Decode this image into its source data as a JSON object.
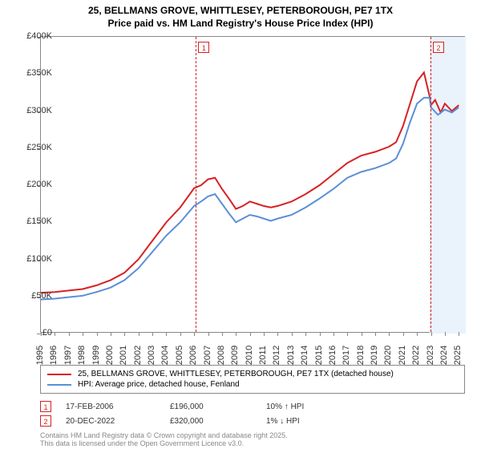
{
  "title_line1": "25, BELLMANS GROVE, WHITTLESEY, PETERBOROUGH, PE7 1TX",
  "title_line2": "Price paid vs. HM Land Registry's House Price Index (HPI)",
  "chart": {
    "type": "line",
    "background_color": "#ffffff",
    "border_color": "#888888",
    "xlim": [
      1995,
      2025.5
    ],
    "ylim": [
      0,
      400
    ],
    "y_ticks": [
      0,
      50,
      100,
      150,
      200,
      250,
      300,
      350,
      400
    ],
    "y_tick_labels": [
      "£0",
      "£50K",
      "£100K",
      "£150K",
      "£200K",
      "£250K",
      "£300K",
      "£350K",
      "£400K"
    ],
    "x_ticks": [
      1995,
      1996,
      1997,
      1998,
      1999,
      2000,
      2001,
      2002,
      2003,
      2004,
      2005,
      2006,
      2007,
      2008,
      2009,
      2010,
      2011,
      2012,
      2013,
      2014,
      2015,
      2016,
      2017,
      2018,
      2019,
      2020,
      2021,
      2022,
      2023,
      2024,
      2025
    ],
    "x_tick_labels": [
      "1995",
      "1996",
      "1997",
      "1998",
      "1999",
      "2000",
      "2001",
      "2002",
      "2003",
      "2004",
      "2005",
      "2006",
      "2007",
      "2008",
      "2009",
      "2010",
      "2011",
      "2012",
      "2013",
      "2014",
      "2015",
      "2016",
      "2017",
      "2018",
      "2019",
      "2020",
      "2021",
      "2022",
      "2023",
      "2024",
      "2025"
    ],
    "shaded_region": {
      "x_start": 2022.9,
      "x_end": 2025.5,
      "fill": "#eaf2fb"
    },
    "series": [
      {
        "name": "price_paid",
        "color": "#d62224",
        "width": 2,
        "points": [
          [
            1995,
            55
          ],
          [
            1996,
            56
          ],
          [
            1997,
            58
          ],
          [
            1998,
            60
          ],
          [
            1999,
            65
          ],
          [
            2000,
            72
          ],
          [
            2001,
            82
          ],
          [
            2002,
            100
          ],
          [
            2003,
            125
          ],
          [
            2004,
            150
          ],
          [
            2005,
            170
          ],
          [
            2006,
            196
          ],
          [
            2006.5,
            200
          ],
          [
            2007,
            208
          ],
          [
            2007.5,
            210
          ],
          [
            2008,
            195
          ],
          [
            2008.5,
            182
          ],
          [
            2009,
            168
          ],
          [
            2009.5,
            172
          ],
          [
            2010,
            178
          ],
          [
            2010.5,
            175
          ],
          [
            2011,
            172
          ],
          [
            2011.5,
            170
          ],
          [
            2012,
            172
          ],
          [
            2013,
            178
          ],
          [
            2014,
            188
          ],
          [
            2015,
            200
          ],
          [
            2016,
            215
          ],
          [
            2017,
            230
          ],
          [
            2018,
            240
          ],
          [
            2019,
            245
          ],
          [
            2020,
            252
          ],
          [
            2020.5,
            258
          ],
          [
            2021,
            280
          ],
          [
            2021.5,
            310
          ],
          [
            2022,
            340
          ],
          [
            2022.5,
            352
          ],
          [
            2022.9,
            320
          ],
          [
            2023,
            308
          ],
          [
            2023.3,
            315
          ],
          [
            2023.7,
            298
          ],
          [
            2024,
            310
          ],
          [
            2024.5,
            300
          ],
          [
            2025,
            308
          ]
        ]
      },
      {
        "name": "hpi",
        "color": "#5a8fd6",
        "width": 2,
        "points": [
          [
            1995,
            46
          ],
          [
            1996,
            47
          ],
          [
            1997,
            49
          ],
          [
            1998,
            51
          ],
          [
            1999,
            56
          ],
          [
            2000,
            62
          ],
          [
            2001,
            72
          ],
          [
            2002,
            88
          ],
          [
            2003,
            110
          ],
          [
            2004,
            132
          ],
          [
            2005,
            150
          ],
          [
            2006,
            172
          ],
          [
            2006.5,
            178
          ],
          [
            2007,
            185
          ],
          [
            2007.5,
            188
          ],
          [
            2008,
            175
          ],
          [
            2008.5,
            162
          ],
          [
            2009,
            150
          ],
          [
            2009.5,
            155
          ],
          [
            2010,
            160
          ],
          [
            2010.5,
            158
          ],
          [
            2011,
            155
          ],
          [
            2011.5,
            152
          ],
          [
            2012,
            155
          ],
          [
            2013,
            160
          ],
          [
            2014,
            170
          ],
          [
            2015,
            182
          ],
          [
            2016,
            195
          ],
          [
            2017,
            210
          ],
          [
            2018,
            218
          ],
          [
            2019,
            223
          ],
          [
            2020,
            230
          ],
          [
            2020.5,
            236
          ],
          [
            2021,
            256
          ],
          [
            2021.5,
            285
          ],
          [
            2022,
            310
          ],
          [
            2022.5,
            318
          ],
          [
            2022.9,
            318
          ],
          [
            2023,
            305
          ],
          [
            2023.5,
            295
          ],
          [
            2024,
            302
          ],
          [
            2024.5,
            298
          ],
          [
            2025,
            305
          ]
        ]
      }
    ],
    "event_lines": [
      {
        "id": "1",
        "x": 2006.13,
        "color": "#d62224"
      },
      {
        "id": "2",
        "x": 2022.97,
        "color": "#d62224"
      }
    ]
  },
  "legend": {
    "items": [
      {
        "color": "#d62224",
        "label": "25, BELLMANS GROVE, WHITTLESEY, PETERBOROUGH, PE7 1TX (detached house)"
      },
      {
        "color": "#5a8fd6",
        "label": "HPI: Average price, detached house, Fenland"
      }
    ]
  },
  "events": [
    {
      "id": "1",
      "color": "#d62224",
      "date": "17-FEB-2006",
      "price": "£196,000",
      "hpi": "10% ↑ HPI"
    },
    {
      "id": "2",
      "color": "#d62224",
      "date": "20-DEC-2022",
      "price": "£320,000",
      "hpi": "1% ↓ HPI"
    }
  ],
  "footer_line1": "Contains HM Land Registry data © Crown copyright and database right 2025.",
  "footer_line2": "This data is licensed under the Open Government Licence v3.0."
}
